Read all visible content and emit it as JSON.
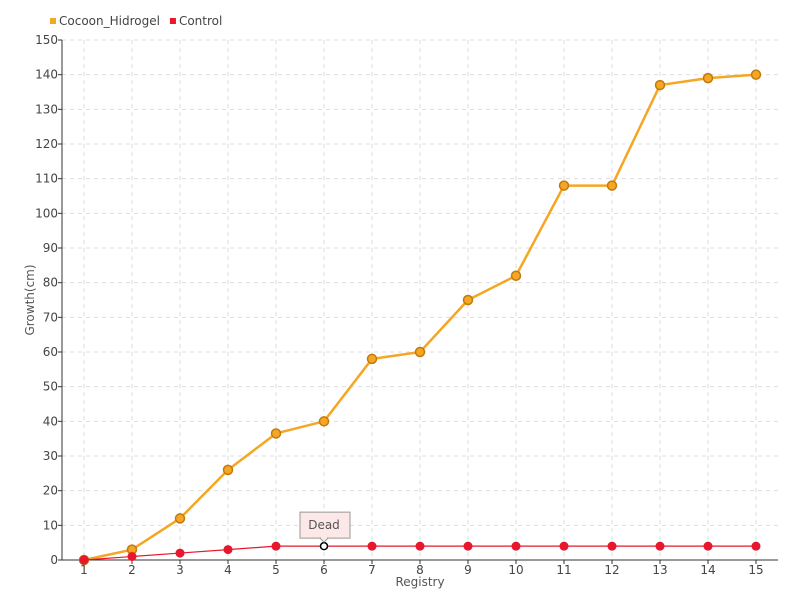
{
  "chart_data": {
    "type": "line",
    "title": "",
    "xlabel": "Registry",
    "ylabel": "Growth(cm)",
    "x": [
      1,
      2,
      3,
      4,
      5,
      6,
      7,
      8,
      9,
      10,
      11,
      12,
      13,
      14,
      15
    ],
    "xlim": [
      1,
      15
    ],
    "ylim": [
      0,
      150
    ],
    "y_ticks": [
      0,
      10,
      20,
      30,
      40,
      50,
      60,
      70,
      80,
      90,
      100,
      110,
      120,
      130,
      140,
      150
    ],
    "grid": true,
    "legend_position": "top-left",
    "series": [
      {
        "name": "Cocoon_Hidrogel",
        "color": "#f5a623",
        "values": [
          0,
          3,
          12,
          26,
          36.5,
          40,
          58,
          60,
          75,
          82,
          108,
          108,
          137,
          139,
          140
        ]
      },
      {
        "name": "Control",
        "color": "#e8172d",
        "values": [
          0,
          1,
          2,
          3,
          4,
          4,
          4,
          4,
          4,
          4,
          4,
          4,
          4,
          4,
          4
        ]
      }
    ],
    "annotations": [
      {
        "text": "Dead",
        "series": "Control",
        "x": 6
      }
    ]
  }
}
